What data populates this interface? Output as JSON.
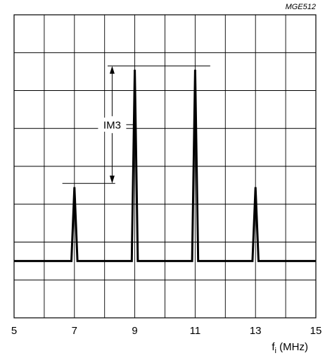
{
  "figure_code": "MGE512",
  "chart_data": {
    "type": "line",
    "title": "",
    "xlabel": "f",
    "xlabel_subscript": "i",
    "xlabel_unit": " (MHz)",
    "ylabel": "",
    "xlim": [
      5,
      15
    ],
    "ylim": [
      0,
      8
    ],
    "x_ticks": [
      "5",
      "7",
      "9",
      "11",
      "13",
      "15"
    ],
    "grid": true,
    "grid_x_divisions": 10,
    "grid_y_divisions": 8,
    "baseline": 1.5,
    "peaks": [
      {
        "x": 7,
        "y": 3.45
      },
      {
        "x": 9,
        "y": 6.55
      },
      {
        "x": 11,
        "y": 6.55
      },
      {
        "x": 13,
        "y": 3.45
      }
    ],
    "annotation": {
      "label": "IM3",
      "from_level": 3.55,
      "to_level": 6.65
    }
  }
}
